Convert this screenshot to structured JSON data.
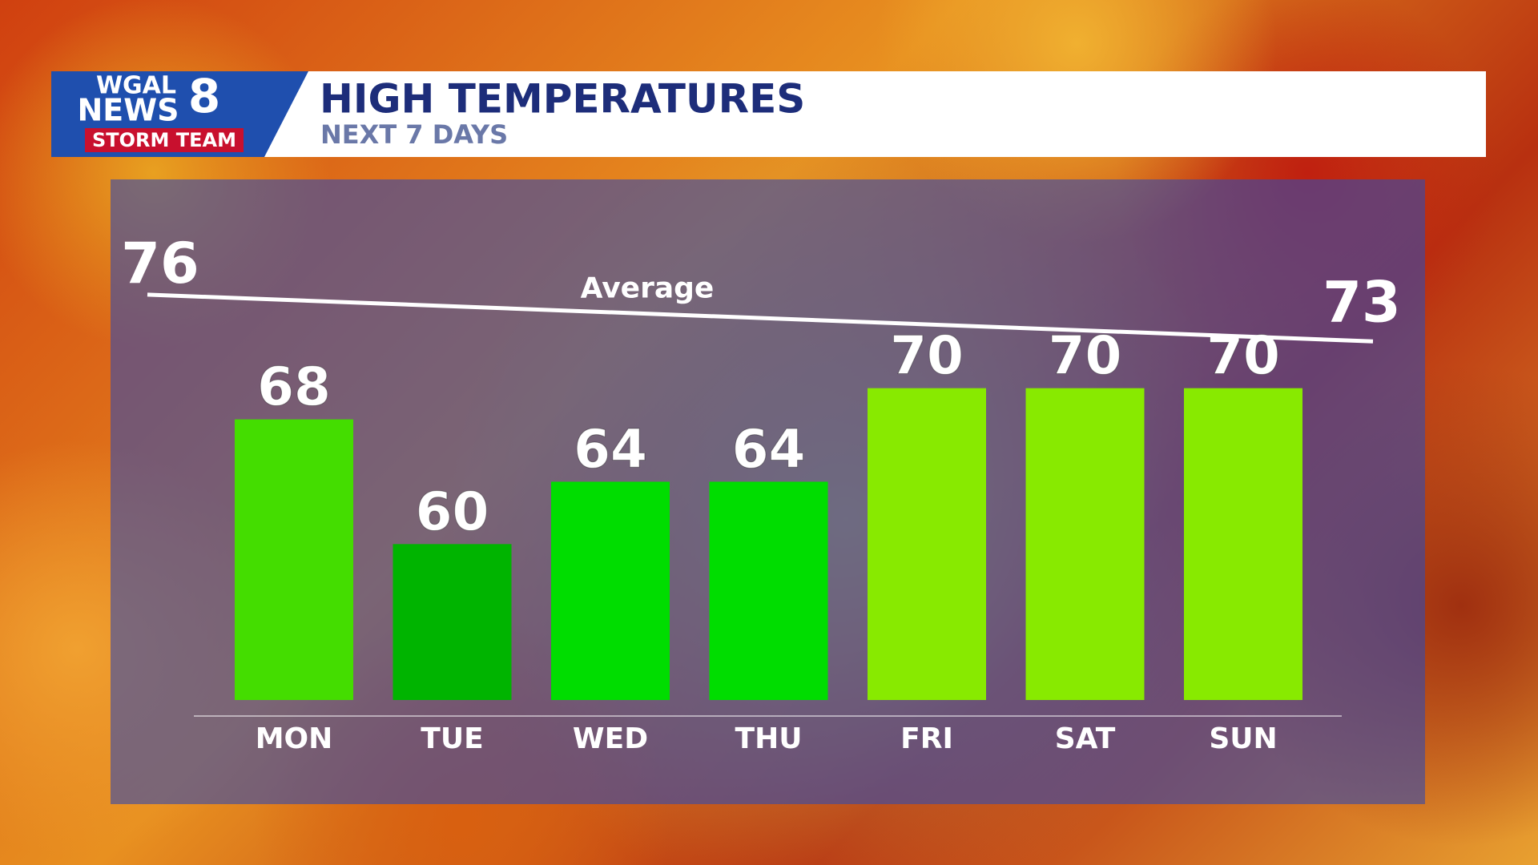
{
  "logo": {
    "station": "WGAL",
    "brand": "NEWS",
    "channel": "8",
    "team": "STORM TEAM"
  },
  "chart_data": {
    "type": "bar",
    "title": "HIGH TEMPERATURES",
    "subtitle": "NEXT 7 DAYS",
    "categories": [
      "MON",
      "TUE",
      "WED",
      "THU",
      "FRI",
      "SAT",
      "SUN"
    ],
    "values": [
      68,
      60,
      64,
      64,
      70,
      70,
      70
    ],
    "colors": [
      "#44dd00",
      "#00b400",
      "#00dd00",
      "#00dd00",
      "#88ea00",
      "#88ea00",
      "#88ea00"
    ],
    "average": {
      "name": "Average",
      "values": [
        76,
        73
      ],
      "color": "#ffffff"
    },
    "ylim": [
      50,
      80
    ]
  }
}
